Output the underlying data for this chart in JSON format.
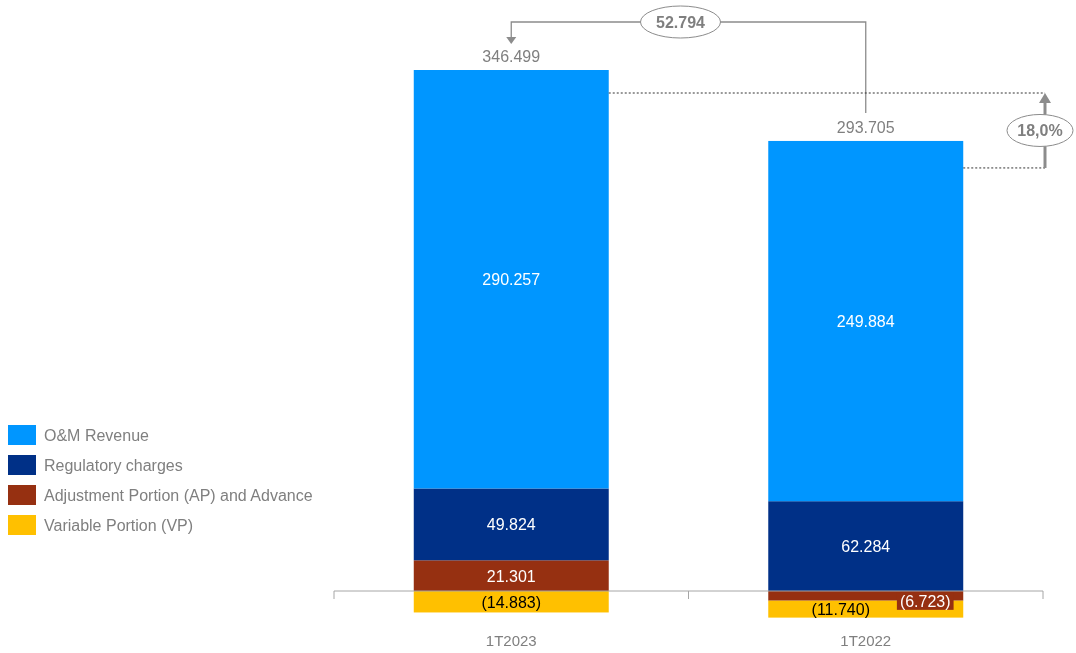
{
  "chart_data": {
    "type": "bar",
    "stacked": true,
    "categories": [
      "1T2023",
      "1T2022"
    ],
    "series": [
      {
        "name": "Adjustment Portion (AP) and Advance",
        "color": "#963011",
        "values": [
          21.301,
          -6.723
        ],
        "value_labels": [
          "21.301",
          "(6.723)"
        ]
      },
      {
        "name": "Regulatory charges",
        "color": "#003087",
        "values": [
          49.824,
          62.284
        ],
        "value_labels": [
          "49.824",
          "62.284"
        ]
      },
      {
        "name": "O&M Revenue",
        "color": "#0096ff",
        "values": [
          290.257,
          249.884
        ],
        "value_labels": [
          "290.257",
          "249.884"
        ]
      },
      {
        "name": "Variable Portion (VP)",
        "color": "#ffc000",
        "values": [
          -14.883,
          -11.74
        ],
        "value_labels": [
          "(14.883)",
          "(11.740)"
        ]
      }
    ],
    "totals": [
      "346.499",
      "293.705"
    ],
    "annotations": [
      "52.794",
      "18,0%"
    ],
    "legend": "left"
  }
}
